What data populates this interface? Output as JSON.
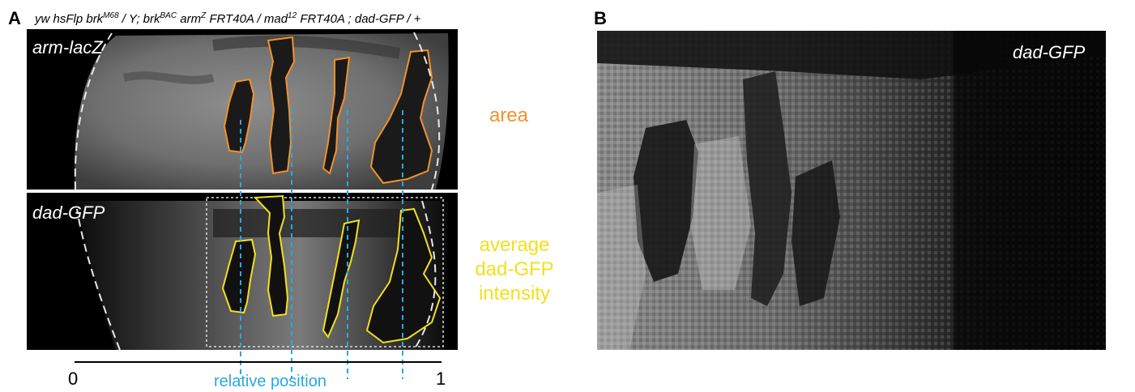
{
  "panel_a": {
    "letter": "A",
    "genotype": {
      "p1": "yw hsFlp brk",
      "s1": "M68",
      "p2": " / Y;  brk",
      "s2": "BAC",
      "p3": " arm",
      "s3": "Z",
      "p4": " FRT40A / mad",
      "s4": "12",
      "p5": " FRT40A ; dad-GFP / +"
    },
    "top_image_label": "arm-lacZ",
    "bottom_image_label": "dad-GFP",
    "area_label": "area",
    "intensity_label": [
      "average",
      "dad-GFP",
      "intensity"
    ],
    "axis": {
      "start": "0",
      "end": "1",
      "label": "relative position"
    }
  },
  "panel_b": {
    "letter": "B",
    "image_label": "dad-GFP"
  },
  "colors": {
    "orange_outline": "#f0912e",
    "yellow_outline": "#f2e01c",
    "blue_dashed": "#29a8e0",
    "white_dashed": "#e8e8e8"
  }
}
